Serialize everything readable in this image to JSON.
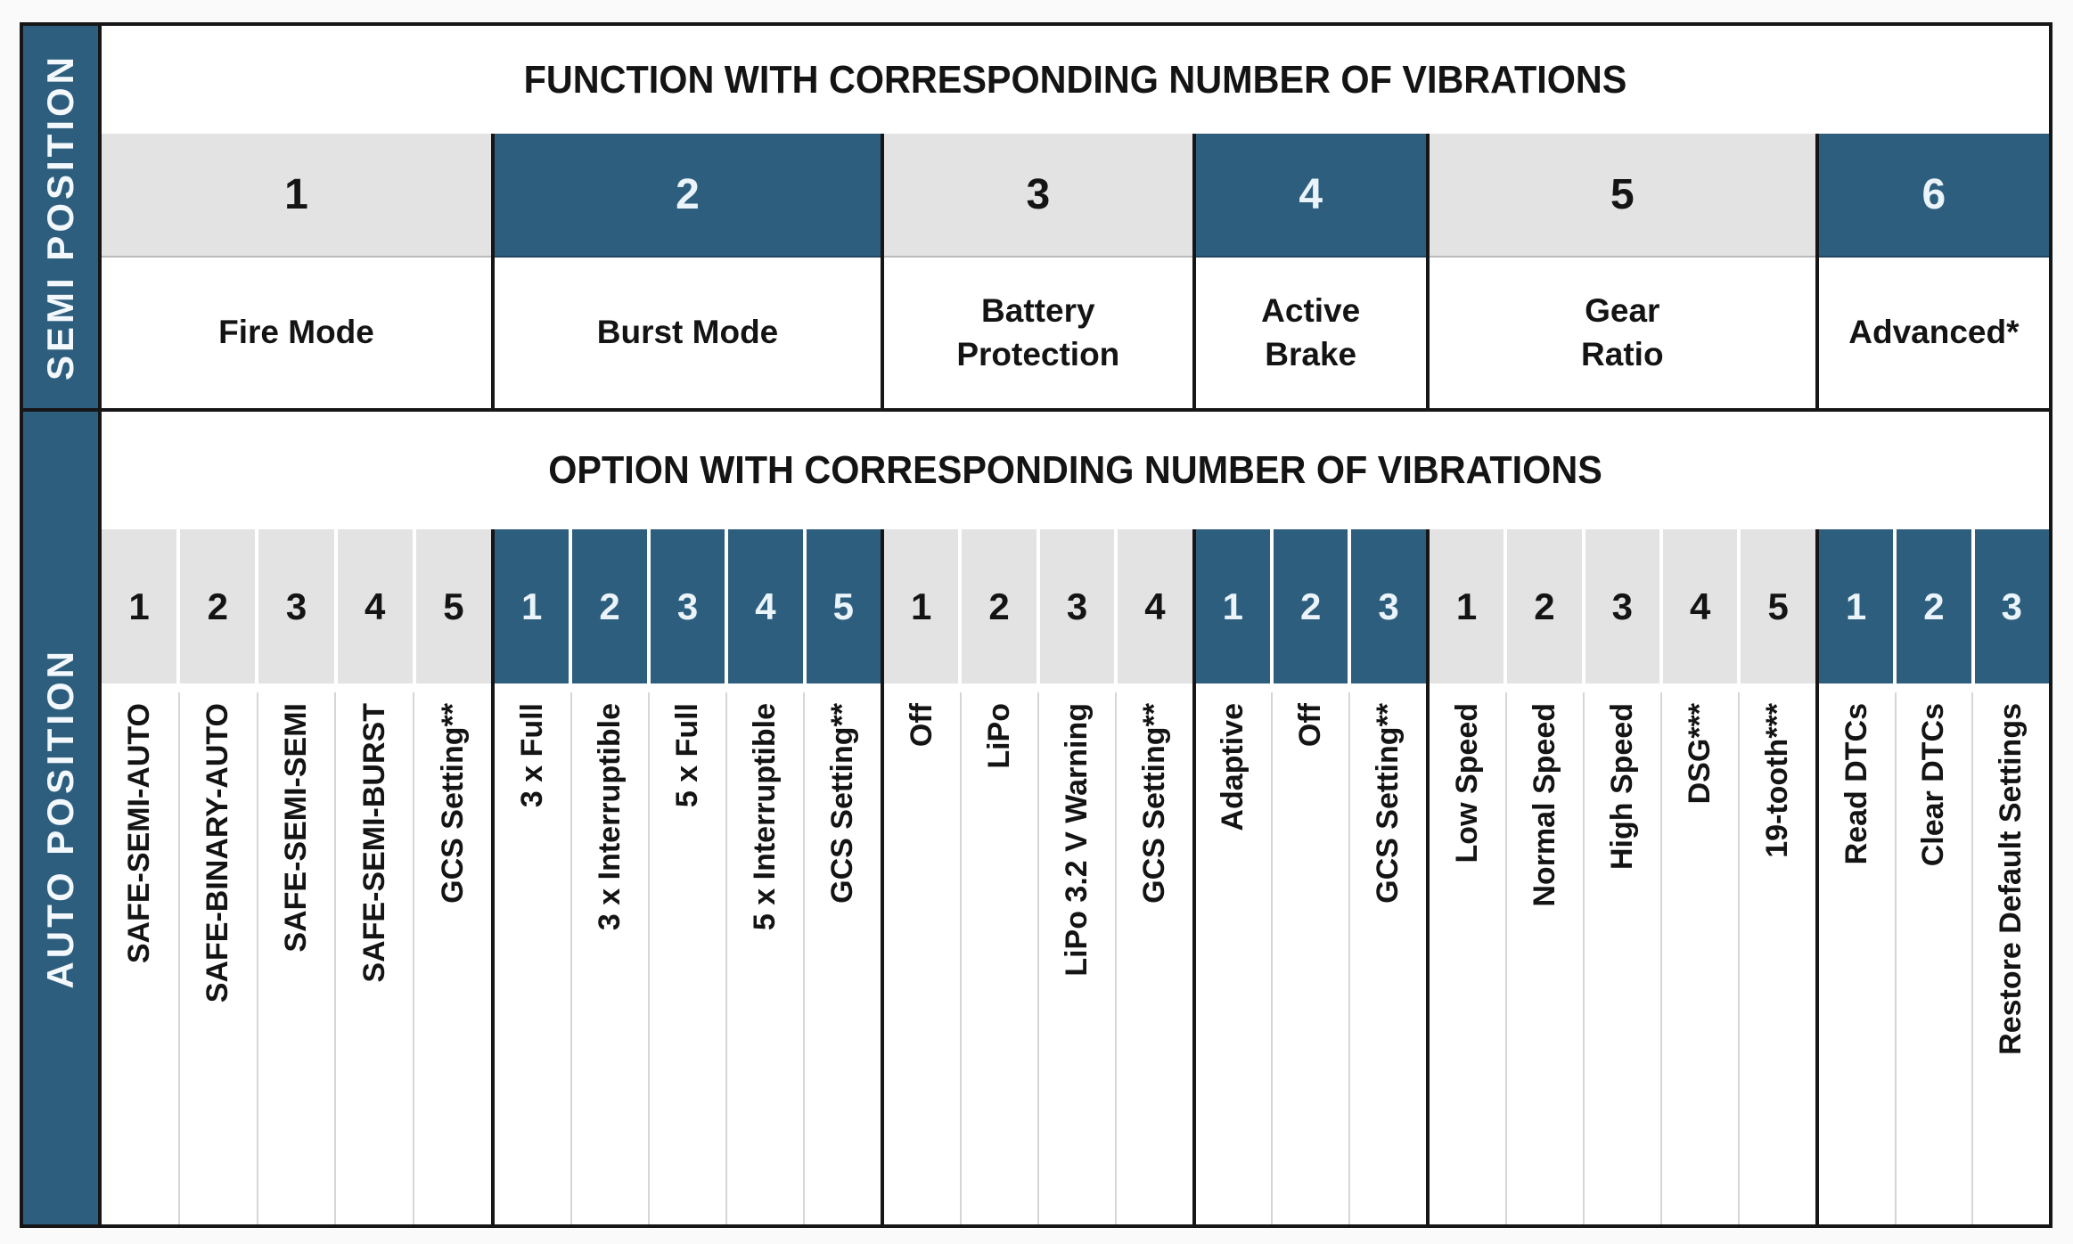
{
  "colors": {
    "accent_blue": "#2e5e7e",
    "cell_gray": "#e3e3e3",
    "line_black": "#161616",
    "text_black": "#141414",
    "text_on_blue": "#eaf4fa",
    "separator_gray": "#d6d6d6"
  },
  "semi_section": {
    "sidebar_label": "SEMI POSITION",
    "header": "FUNCTION WITH CORRESPONDING NUMBER OF VIBRATIONS",
    "groups": [
      {
        "number": "1",
        "function": "Fire Mode",
        "accent": false,
        "columns": 5
      },
      {
        "number": "2",
        "function": "Burst Mode",
        "accent": true,
        "columns": 5
      },
      {
        "number": "3",
        "function": "Battery\nProtection",
        "accent": false,
        "columns": 4
      },
      {
        "number": "4",
        "function": "Active\nBrake",
        "accent": true,
        "columns": 3
      },
      {
        "number": "5",
        "function": "Gear\nRatio",
        "accent": false,
        "columns": 5
      },
      {
        "number": "6",
        "function": "Advanced*",
        "accent": true,
        "columns": 3
      }
    ]
  },
  "auto_section": {
    "sidebar_label": "AUTO POSITION",
    "header": "OPTION WITH CORRESPONDING NUMBER OF VIBRATIONS",
    "groups": [
      {
        "function": "Fire Mode",
        "accent": false,
        "options": [
          {
            "number": "1",
            "label": "SAFE-SEMI-AUTO"
          },
          {
            "number": "2",
            "label": "SAFE-BINARY-AUTO"
          },
          {
            "number": "3",
            "label": "SAFE-SEMI-SEMI"
          },
          {
            "number": "4",
            "label": "SAFE-SEMI-BURST"
          },
          {
            "number": "5",
            "label": "GCS Setting**"
          }
        ]
      },
      {
        "function": "Burst Mode",
        "accent": true,
        "options": [
          {
            "number": "1",
            "label": "3 x Full"
          },
          {
            "number": "2",
            "label": "3 x Interruptible"
          },
          {
            "number": "3",
            "label": "5 x Full"
          },
          {
            "number": "4",
            "label": "5 x Interruptible"
          },
          {
            "number": "5",
            "label": "GCS Setting**"
          }
        ]
      },
      {
        "function": "Battery Protection",
        "accent": false,
        "options": [
          {
            "number": "1",
            "label": "Off"
          },
          {
            "number": "2",
            "label": "LiPo"
          },
          {
            "number": "3",
            "label": "LiPo 3.2 V Warning"
          },
          {
            "number": "4",
            "label": "GCS Setting**"
          }
        ]
      },
      {
        "function": "Active Brake",
        "accent": true,
        "options": [
          {
            "number": "1",
            "label": "Adaptive"
          },
          {
            "number": "2",
            "label": "Off"
          },
          {
            "number": "3",
            "label": "GCS Setting**"
          }
        ]
      },
      {
        "function": "Gear Ratio",
        "accent": false,
        "options": [
          {
            "number": "1",
            "label": "Low Speed"
          },
          {
            "number": "2",
            "label": "Normal Speed"
          },
          {
            "number": "3",
            "label": "High Speed"
          },
          {
            "number": "4",
            "label": "DSG***"
          },
          {
            "number": "5",
            "label": "19-tooth***"
          }
        ]
      },
      {
        "function": "Advanced*",
        "accent": true,
        "options": [
          {
            "number": "1",
            "label": "Read DTCs"
          },
          {
            "number": "2",
            "label": "Clear DTCs"
          },
          {
            "number": "3",
            "label": "Restore Default Settings"
          }
        ]
      }
    ]
  }
}
